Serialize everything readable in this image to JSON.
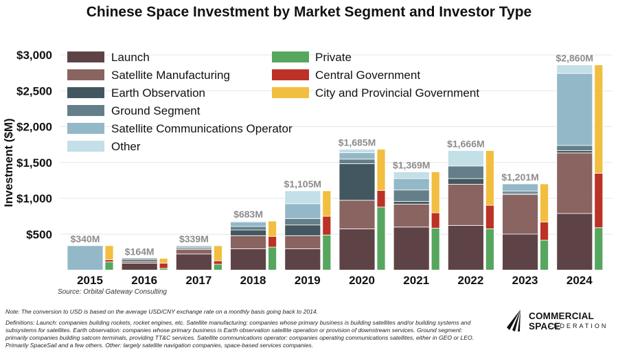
{
  "chart_data": {
    "type": "bar",
    "title": "Chinese Space Investment by Market Segment and Investor Type",
    "ylabel": "Investment ($M)",
    "ylim": [
      0,
      3000
    ],
    "yticks": [
      "$500",
      "$1,000",
      "$1,500",
      "$2,000",
      "$2,500",
      "$3,000"
    ],
    "ytick_values": [
      500,
      1000,
      1500,
      2000,
      2500,
      3000
    ],
    "grid": true,
    "legend_placement": "top-left",
    "categories": [
      "2015",
      "2016",
      "2017",
      "2018",
      "2019",
      "2020",
      "2021",
      "2022",
      "2023",
      "2024"
    ],
    "totals": [
      "$340M",
      "$164M",
      "$339M",
      "$683M",
      "$1,105M",
      "$1,685M",
      "$1,369M",
      "$1,666M",
      "$1,201M",
      "$2,860M"
    ],
    "segment_series": [
      {
        "name": "Launch",
        "color": "#5e4346",
        "values": [
          0,
          97,
          225,
          298,
          298,
          575,
          600,
          623,
          502,
          789
        ]
      },
      {
        "name": "Satellite Manufacturing",
        "color": "#8a6461",
        "values": [
          0,
          23,
          64,
          182,
          182,
          398,
          320,
          574,
          551,
          844
        ]
      },
      {
        "name": "Earth Observation",
        "color": "#435760",
        "values": [
          0,
          25,
          15,
          79,
          149,
          511,
          38,
          79,
          16,
          32
        ]
      },
      {
        "name": "Ground Segment",
        "color": "#647f8a",
        "values": [
          0,
          19,
          16,
          48,
          90,
          63,
          159,
          175,
          32,
          73
        ]
      },
      {
        "name": "Satellite Communications Operator",
        "color": "#93b8c8",
        "values": [
          340,
          0,
          19,
          64,
          206,
          90,
          159,
          0,
          100,
          1004
        ]
      },
      {
        "name": "Other",
        "color": "#c3dfe7",
        "values": [
          0,
          0,
          0,
          12,
          180,
          48,
          93,
          215,
          0,
          118
        ]
      }
    ],
    "investor_series": [
      {
        "name": "Private",
        "color": "#57a65f",
        "values": [
          113,
          24,
          81,
          320,
          489,
          878,
          585,
          575,
          416,
          591
        ]
      },
      {
        "name": "Central Government",
        "color": "#bd3226",
        "values": [
          32,
          73,
          48,
          150,
          261,
          233,
          213,
          328,
          255,
          759
        ]
      },
      {
        "name": "City and Provincial Government",
        "color": "#f2be40",
        "values": [
          195,
          67,
          210,
          213,
          355,
          574,
          571,
          763,
          530,
          1510
        ]
      }
    ]
  },
  "source": "Source: Orbital Gateway Consulting",
  "note": "Note: The conversion to USD is based on the average USD/CNY exchange rate on a monthly basis going back to 2014.",
  "definitions": "Definitions: Launch: companies building rockets, rocket engines, etc. Satellite manufacturing: companies whose primary business is building satellites and/or building systems and subsystems for satellites. Earth observation: companies whose primary business is Earth observation satellite operation or provision of downstream services. Ground segment: primarily companies building satcom terminals, providing TT&C services. Satellite communications operator: companies operating communications satellites, either in GEO or LEO. Primarily SpaceSail and a few others. Other: largely satellite navigation companies, space-based services companies.",
  "logo": {
    "line1": "COMMERCIAL SPACE",
    "line2": "FEDERATION"
  }
}
